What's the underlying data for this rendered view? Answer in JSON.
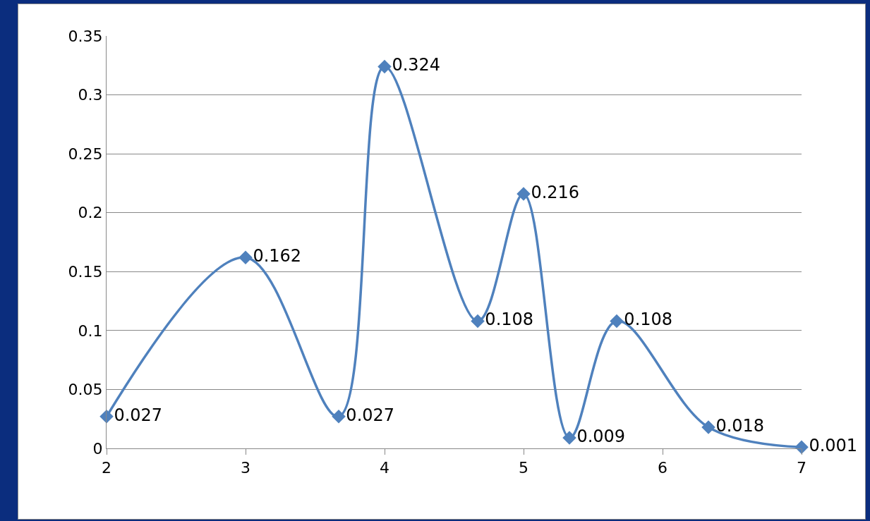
{
  "chart_data": {
    "type": "line",
    "x": [
      2,
      3,
      3.67,
      4,
      4.67,
      5,
      5.33,
      5.67,
      6.33,
      7
    ],
    "series": [
      {
        "color": "#4f81bd",
        "values": [
          0.027,
          0.162,
          0.027,
          0.324,
          0.108,
          0.216,
          0.009,
          0.108,
          0.018,
          0.001
        ]
      }
    ],
    "xlim": [
      2,
      7
    ],
    "xticks": [
      2,
      3,
      4,
      5,
      6,
      7
    ],
    "ylim": [
      0,
      0.35
    ],
    "yticks": [
      0,
      0.05,
      0.1,
      0.15,
      0.2,
      0.25,
      0.3,
      0.35
    ],
    "grid": "y",
    "marker": "diamond",
    "line_style": "solid",
    "data_labels": true
  }
}
